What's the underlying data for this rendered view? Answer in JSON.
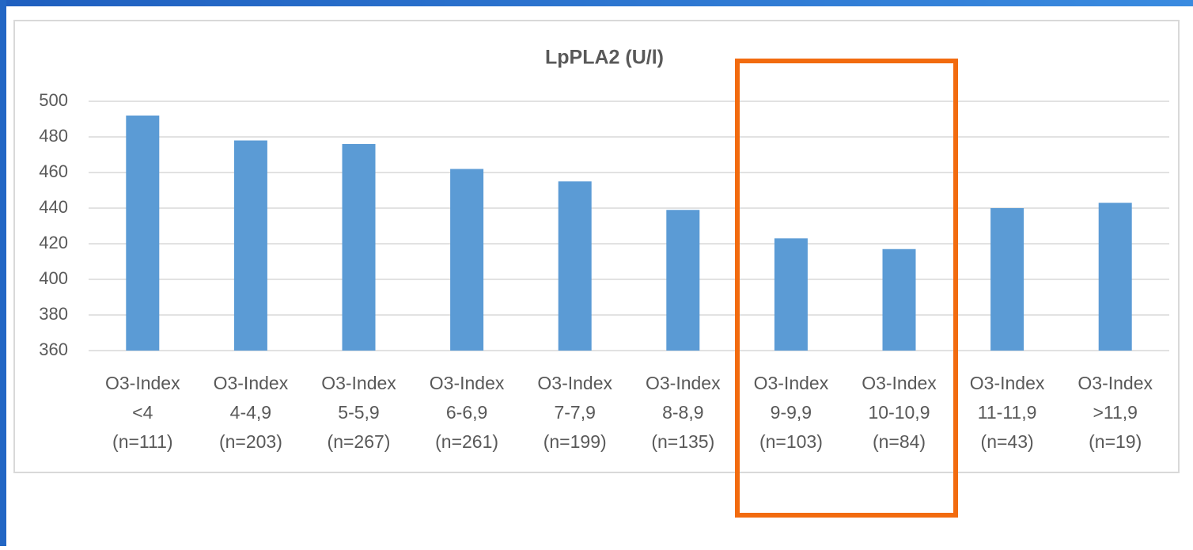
{
  "chart_data": {
    "type": "bar",
    "title": "LpPLA2 (U/l)",
    "categories": [
      [
        "O3-Index",
        "<4",
        "(n=111)"
      ],
      [
        "O3-Index",
        "4-4,9",
        "(n=203)"
      ],
      [
        "O3-Index",
        "5-5,9",
        "(n=267)"
      ],
      [
        "O3-Index",
        "6-6,9",
        "(n=261)"
      ],
      [
        "O3-Index",
        "7-7,9",
        "(n=199)"
      ],
      [
        "O3-Index",
        "8-8,9",
        "(n=135)"
      ],
      [
        "O3-Index",
        "9-9,9",
        "(n=103)"
      ],
      [
        "O3-Index",
        "10-10,9",
        "(n=84)"
      ],
      [
        "O3-Index",
        "11-11,9",
        "(n=43)"
      ],
      [
        "O3-Index",
        ">11,9",
        "(n=19)"
      ]
    ],
    "values": [
      492,
      478,
      476,
      462,
      455,
      439,
      423,
      417,
      440,
      443
    ],
    "color": "#5b9bd5",
    "ylim": [
      360,
      500
    ],
    "yticks": [
      360,
      380,
      400,
      420,
      440,
      460,
      480,
      500
    ],
    "grid": true
  }
}
